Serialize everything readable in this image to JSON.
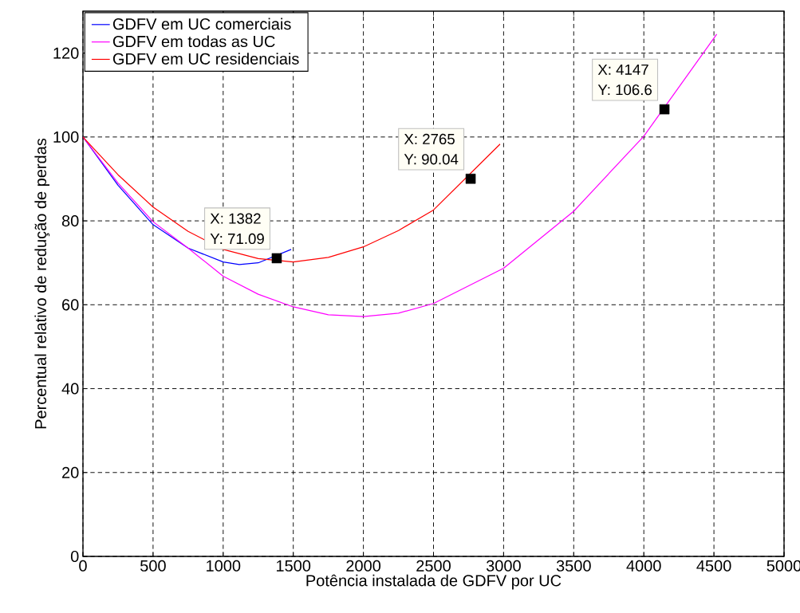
{
  "chart_data": {
    "type": "line",
    "xlabel": "Potência instalada de GDFV por UC",
    "ylabel": "Percentual relativo de redução de perdas",
    "xlim": [
      0,
      5000
    ],
    "ylim": [
      0,
      130
    ],
    "xticks": [
      0,
      500,
      1000,
      1500,
      2000,
      2500,
      3000,
      3500,
      4000,
      4500,
      5000
    ],
    "yticks": [
      0,
      20,
      40,
      60,
      80,
      100,
      120
    ],
    "grid": true,
    "legend": "top left",
    "line_style": "solid",
    "marker": "none",
    "series": [
      {
        "name": "GDFV em UC comerciais",
        "color": "#0000ff",
        "x": [
          0,
          250,
          500,
          750,
          1000,
          1115,
          1250,
          1485
        ],
        "values": [
          100,
          88.5,
          79.1,
          73.5,
          70.2,
          69.6,
          70,
          73.2
        ]
      },
      {
        "name": "GDFV em todas as UC",
        "color": "#ff00ff",
        "x": [
          0,
          250,
          500,
          750,
          1000,
          1250,
          1500,
          1750,
          2000,
          2250,
          2500,
          3000,
          3500,
          4000,
          4520
        ],
        "values": [
          100,
          89,
          79.8,
          73.5,
          66.8,
          62.5,
          59.5,
          57.6,
          57.2,
          58,
          60.3,
          68.7,
          82.3,
          100.2,
          124.5
        ]
      },
      {
        "name": "GDFV em UC residenciais",
        "color": "#ff0000",
        "x": [
          0,
          250,
          500,
          750,
          1000,
          1250,
          1500,
          1750,
          2000,
          2250,
          2500,
          2975
        ],
        "values": [
          100,
          91,
          83.3,
          77.5,
          73.2,
          71,
          70.2,
          71.3,
          73.8,
          77.7,
          82.6,
          98.3
        ]
      },
      {
        "type": "scatter",
        "marker": "square",
        "color": "#000000",
        "x": [
          1382,
          2765,
          4147
        ],
        "values": [
          71.09,
          90.04,
          106.6
        ]
      }
    ],
    "annotations": [
      {
        "text": "X: 1382",
        "x": 1382,
        "y": 71.09
      },
      {
        "text": "Y: 71.09",
        "x": 1382,
        "y": 71.09
      },
      {
        "text": "X: 2765",
        "x": 2765,
        "y": 90.04
      },
      {
        "text": "Y: 90.04",
        "x": 2765,
        "y": 90.04
      },
      {
        "text": "X: 4147",
        "x": 4147,
        "y": 106.6
      },
      {
        "text": "Y: 106.6",
        "x": 4147,
        "y": 106.6
      }
    ]
  }
}
